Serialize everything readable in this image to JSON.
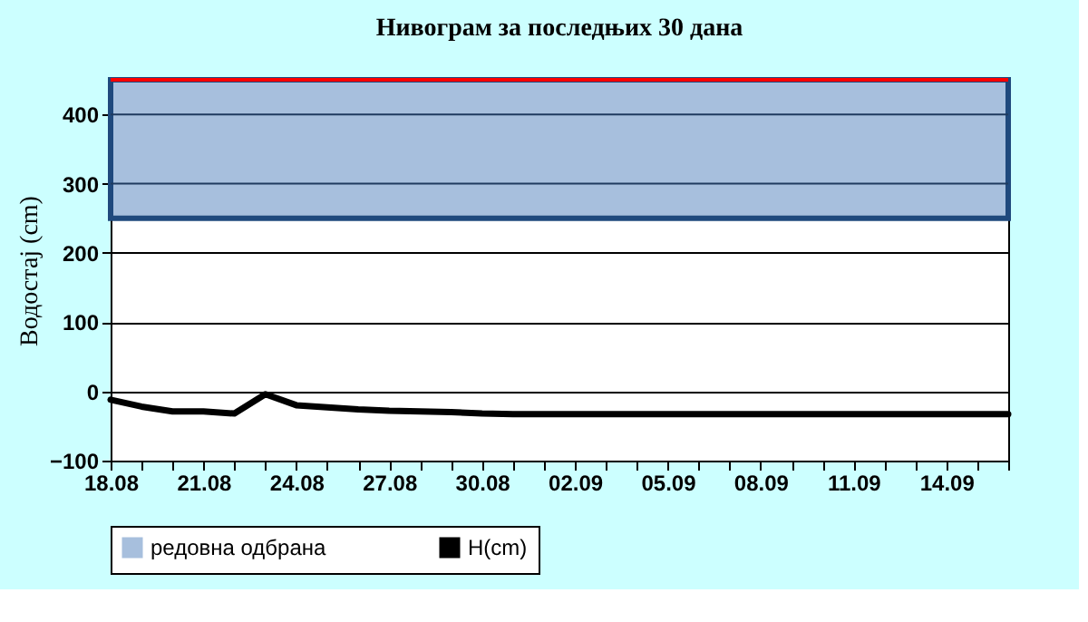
{
  "chart_data": {
    "type": "line",
    "title": "Нивограм за последњих 30 дана",
    "ylabel": "Водостај (cm)",
    "categories": [
      "18.08",
      null,
      null,
      "21.08",
      null,
      null,
      "24.08",
      null,
      null,
      "27.08",
      null,
      null,
      "30.08",
      null,
      null,
      "02.09",
      null,
      null,
      "05.09",
      null,
      null,
      "08.09",
      null,
      null,
      "11.09",
      null,
      null,
      "14.09",
      null,
      null
    ],
    "series": [
      {
        "name": "H(cm)",
        "color": "#000000",
        "values": [
          -12,
          -22,
          -29,
          -29,
          -32,
          -4,
          -20,
          -23,
          -26,
          -28,
          -29,
          -30,
          -32,
          -33,
          -33,
          -33,
          -33,
          -33,
          -33,
          -33,
          -33,
          -33,
          -33,
          -33,
          -33,
          -33,
          -33,
          -33,
          -33,
          -33
        ]
      }
    ],
    "ylim": [
      -100,
      450
    ],
    "yticks": [
      -100,
      0,
      100,
      200,
      300,
      400
    ],
    "grid": "y",
    "legend": "bottom",
    "bands": [
      {
        "axis": "y",
        "from": 250,
        "to": 450,
        "label": "редовна одбрана",
        "color": "#a7bfdd"
      }
    ],
    "ref_lines": [
      {
        "axis": "y",
        "value": 450,
        "color": "#ff0000"
      }
    ]
  }
}
